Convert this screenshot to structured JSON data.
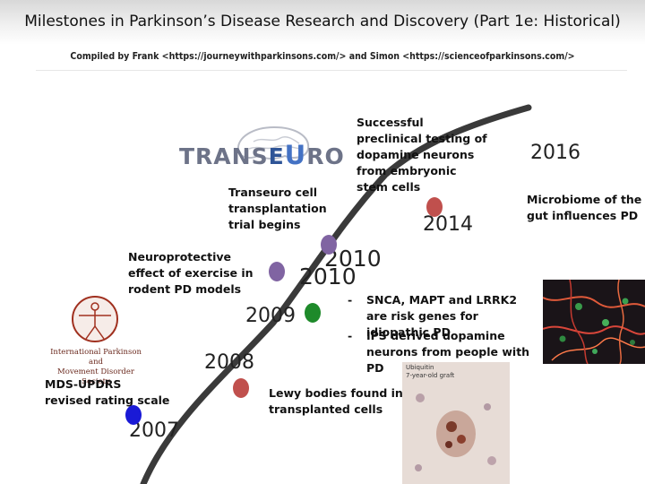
{
  "title": "Milestones in Parkinson’s Disease Research and Discovery (Part 1e: Historical)",
  "subtitle": "Compiled by Frank <https://journeywithparkinsons.com/> and Simon <https://scienceofparkinsons.com/>",
  "logo_transeuro": {
    "text_left": "TRANS",
    "text_e": "E",
    "text_u": "U",
    "text_right": "RO"
  },
  "logo_ipmds": {
    "line1": "International Parkinson and",
    "line2": "Movement Disorder Society"
  },
  "image_ips_caption": "",
  "image_lewy": {
    "line1": "Ubiquitin",
    "line2": "7-year-old graft"
  },
  "milestones": {
    "m2007": {
      "year": "2007",
      "text": "MDS-UPDRS revised rating scale",
      "color": "#1a1ad6"
    },
    "m2008": {
      "year": "2008",
      "text": "Lewy bodies found in transplanted cells",
      "color": "#c0504d"
    },
    "m2009": {
      "year": "2009",
      "text": "SNCA, MAPT and LRRK2 are risk genes for idiopathic PD",
      "color": "#1e8a2a"
    },
    "m2010a": {
      "year": "2010",
      "text": "Neuroprotective effect of exercise in rodent PD models",
      "color": "#8064a2"
    },
    "m2010b": {
      "year": "2010",
      "text": "Transeuro cell transplantation trial begins",
      "color": "#8064a2"
    },
    "m2014": {
      "year": "2014",
      "text": "Successful preclinical testing of dopamine neurons from embryonic stem cells",
      "color": "#c0504d"
    },
    "m2016": {
      "year": "2016",
      "text": "Microbiome of the gut influences PD"
    }
  },
  "bullets": {
    "dash": "-",
    "b1": "SNCA, MAPT and LRRK2 are risk genes for idiopathic PD",
    "b2": "IPS derived dopamine neurons from people with PD"
  },
  "notes": {
    "exercise": "Neuroprotective effect of exercise in rodent PD models",
    "transeuro": "Transeuro cell transplantation trial begins",
    "stemcells": "Successful preclinical testing of dopamine neurons from embryonic stem cells",
    "microbiome": "Microbiome of the gut influences PD",
    "updrs": "MDS-UPDRS revised rating scale",
    "lewy": "Lewy bodies found in transplanted cells"
  }
}
